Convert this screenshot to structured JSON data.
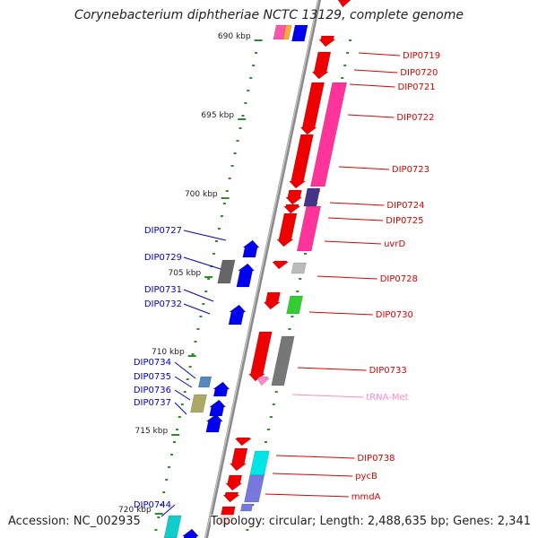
{
  "title": "Corynebacterium diphtheriae NCTC 13129, complete genome",
  "footer": {
    "accession": "Accession: NC_002935",
    "topology": "Topology: circular; Length: 2,488,635 bp; Genes: 2,341"
  },
  "colors": {
    "backbone": "#8a8a8a",
    "tick": "#2e8b2e",
    "right_label": "#e00000",
    "left_label": "#0000cc",
    "trna_label": "#ff88cc"
  },
  "scale": [
    "690 kbp",
    "695 kbp",
    "700 kbp",
    "705 kbp",
    "710 kbp",
    "715 kbp",
    "720 kbp"
  ],
  "right_labels": [
    {
      "text": "DIP0719",
      "color": "#e00000"
    },
    {
      "text": "DIP0720",
      "color": "#e00000"
    },
    {
      "text": "DIP0721",
      "color": "#e00000"
    },
    {
      "text": "DIP0722",
      "color": "#e00000"
    },
    {
      "text": "DIP0723",
      "color": "#e00000"
    },
    {
      "text": "DIP0724",
      "color": "#e00000"
    },
    {
      "text": "DIP0725",
      "color": "#e00000"
    },
    {
      "text": "uvrD",
      "color": "#e00000"
    },
    {
      "text": "DIP0728",
      "color": "#e00000"
    },
    {
      "text": "DIP0730",
      "color": "#e00000"
    },
    {
      "text": "DIP0733",
      "color": "#e00000"
    },
    {
      "text": "tRNA-Met",
      "color": "#ff88cc"
    },
    {
      "text": "DIP0738",
      "color": "#e00000"
    },
    {
      "text": "pycB",
      "color": "#e00000"
    },
    {
      "text": "mmdA",
      "color": "#e00000"
    }
  ],
  "left_labels": [
    {
      "text": "DIP0727"
    },
    {
      "text": "DIP0729"
    },
    {
      "text": "DIP0731"
    },
    {
      "text": "DIP0732"
    },
    {
      "text": "DIP0734"
    },
    {
      "text": "DIP0735"
    },
    {
      "text": "DIP0736"
    },
    {
      "text": "DIP0737"
    },
    {
      "text": "DIP0744"
    }
  ]
}
